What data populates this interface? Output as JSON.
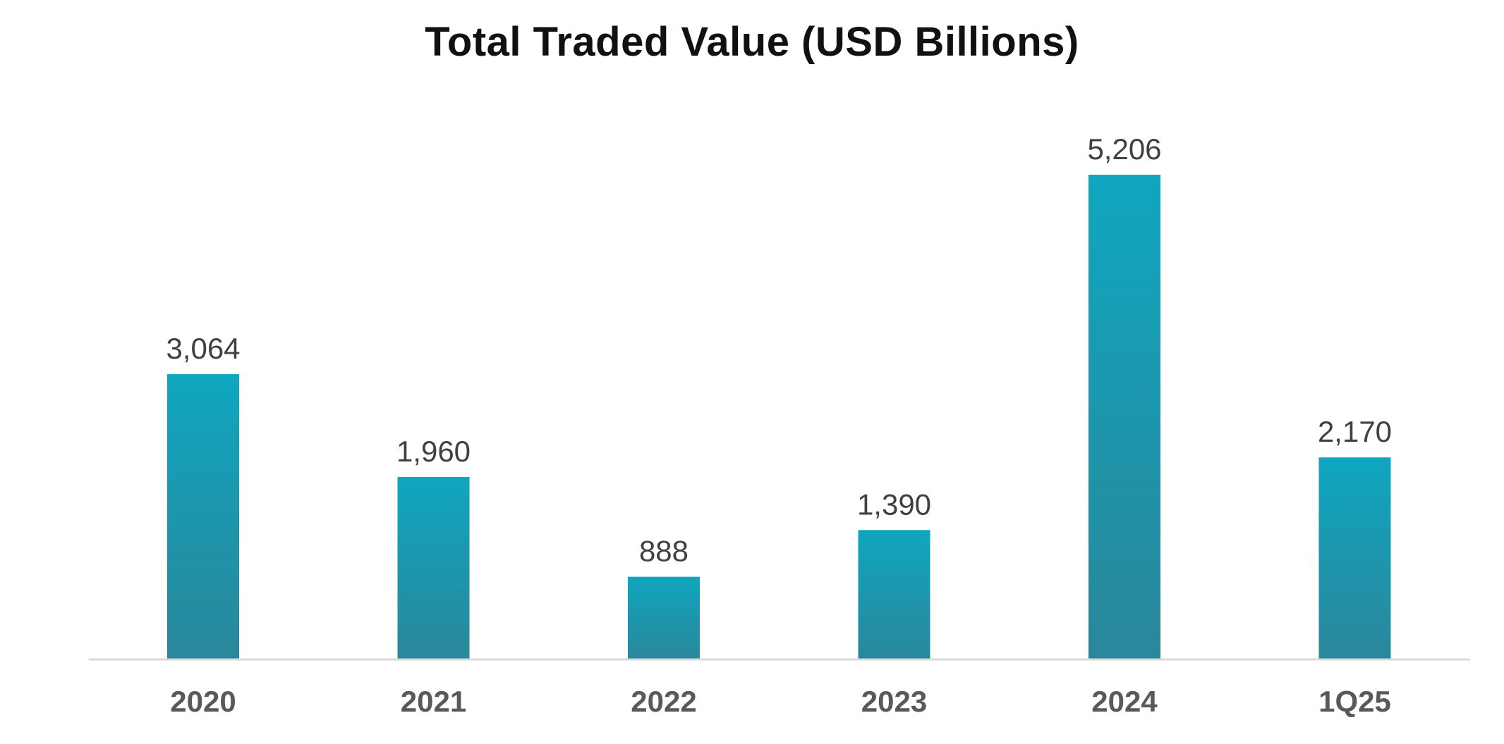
{
  "chart_data": {
    "type": "bar",
    "title": "Total Traded Value (USD Billions)",
    "xlabel": "",
    "ylabel": "",
    "categories": [
      "2020",
      "2021",
      "2022",
      "2023",
      "2024",
      "1Q25"
    ],
    "values": [
      3064,
      1960,
      888,
      1390,
      5206,
      2170
    ],
    "value_labels": [
      "3,064",
      "1,960",
      "888",
      "1,390",
      "5,206",
      "2,170"
    ],
    "ylim": [
      0,
      5206
    ],
    "grid": false,
    "legend": "none",
    "colors": {
      "bar_top": "#0fa6bf",
      "bar_bottom": "#2a879b",
      "axis_line": "#d9d9d9"
    }
  }
}
